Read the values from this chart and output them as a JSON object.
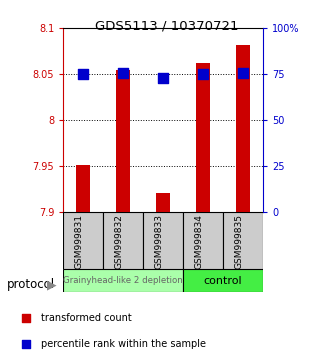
{
  "title": "GDS5113 / 10370721",
  "samples": [
    "GSM999831",
    "GSM999832",
    "GSM999833",
    "GSM999834",
    "GSM999835"
  ],
  "red_values": [
    7.951,
    8.055,
    7.921,
    8.062,
    8.082
  ],
  "blue_values": [
    75.0,
    75.5,
    73.0,
    75.0,
    75.5
  ],
  "ylim_left": [
    7.9,
    8.1
  ],
  "ylim_right": [
    0,
    100
  ],
  "left_ticks": [
    7.9,
    7.95,
    8.0,
    8.05,
    8.1
  ],
  "right_ticks": [
    0,
    25,
    50,
    75,
    100
  ],
  "left_tick_labels": [
    "7.9",
    "7.95",
    "8",
    "8.05",
    "8.1"
  ],
  "right_tick_labels": [
    "0",
    "25",
    "50",
    "75",
    "100%"
  ],
  "groups": [
    {
      "label": "Grainyhead-like 2 depletion",
      "samples": [
        0,
        1,
        2
      ],
      "color": "#aaffaa",
      "edge_color": "#88cc88"
    },
    {
      "label": "control",
      "samples": [
        3,
        4
      ],
      "color": "#44ee44",
      "edge_color": "#22cc22"
    }
  ],
  "bar_color": "#cc0000",
  "dot_color": "#0000cc",
  "bar_width": 0.35,
  "dot_size": 60,
  "grid_color": "#000000",
  "background_color": "#ffffff",
  "legend_red_label": "transformed count",
  "legend_blue_label": "percentile rank within the sample",
  "protocol_label": "protocol",
  "left_axis_color": "#cc0000",
  "right_axis_color": "#0000cc",
  "sample_box_color": "#cccccc",
  "group0_font_color": "#666666",
  "group1_font_color": "#000000"
}
